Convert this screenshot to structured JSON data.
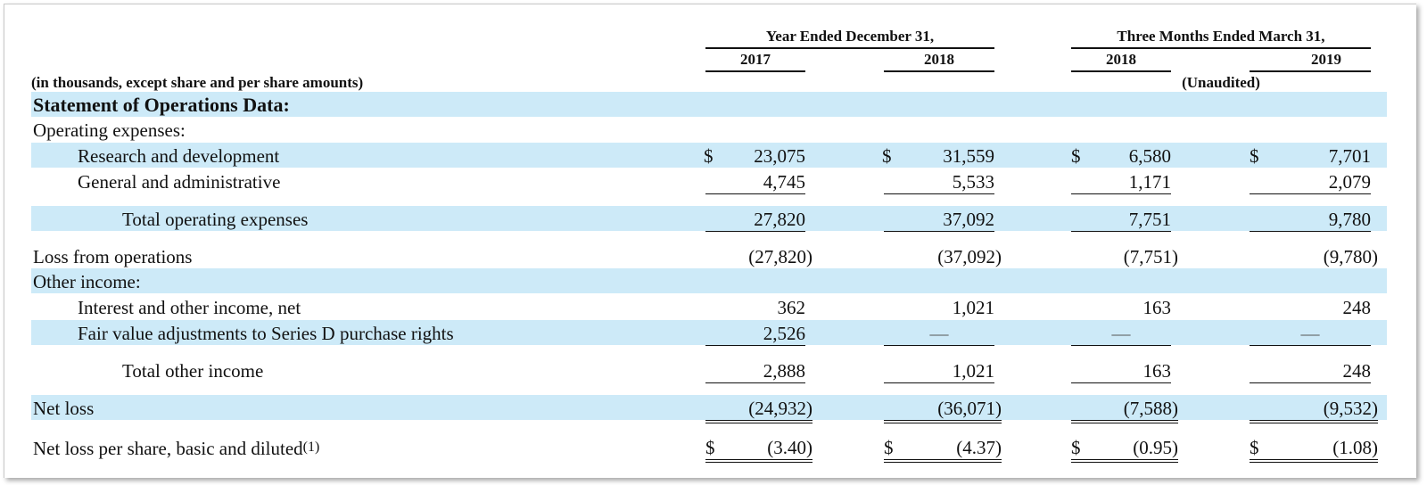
{
  "header": {
    "group1": "Year Ended December 31,",
    "group2": "Three Months Ended March 31,",
    "years": [
      "2017",
      "2018",
      "2018",
      "2019"
    ],
    "unaudited": "(Unaudited)",
    "units_note": "(in thousands, except share and per share amounts)"
  },
  "rows": {
    "section": "Statement of Operations Data:",
    "opex_header": "Operating expenses:",
    "rd": {
      "label": "Research and development",
      "cur": "$",
      "v": [
        "23,075",
        "31,559",
        "6,580",
        "7,701"
      ]
    },
    "ga": {
      "label": "General and administrative",
      "v": [
        "4,745",
        "5,533",
        "1,171",
        "2,079"
      ]
    },
    "total_opex": {
      "label": "Total operating expenses",
      "v": [
        "27,820",
        "37,092",
        "7,751",
        "9,780"
      ]
    },
    "loss_ops": {
      "label": "Loss from operations",
      "v": [
        "(27,820)",
        "(37,092)",
        "(7,751)",
        "(9,780)"
      ]
    },
    "other_header": "Other income:",
    "interest": {
      "label": "Interest and other income, net",
      "v": [
        "362",
        "1,021",
        "163",
        "248"
      ]
    },
    "fair_value": {
      "label": "Fair value adjustments to Series D purchase rights",
      "v": [
        "2,526",
        "—",
        "—",
        "—"
      ]
    },
    "total_other": {
      "label": "Total other income",
      "v": [
        "2,888",
        "1,021",
        "163",
        "248"
      ]
    },
    "net_loss": {
      "label": "Net loss",
      "v": [
        "(24,932)",
        "(36,071)",
        "(7,588)",
        "(9,532)"
      ]
    },
    "eps": {
      "label": "Net loss per share, basic and diluted",
      "footnote": "(1)",
      "cur": "$",
      "v": [
        "(3.40)",
        "(4.37)",
        "(0.95)",
        "(1.08)"
      ]
    }
  }
}
